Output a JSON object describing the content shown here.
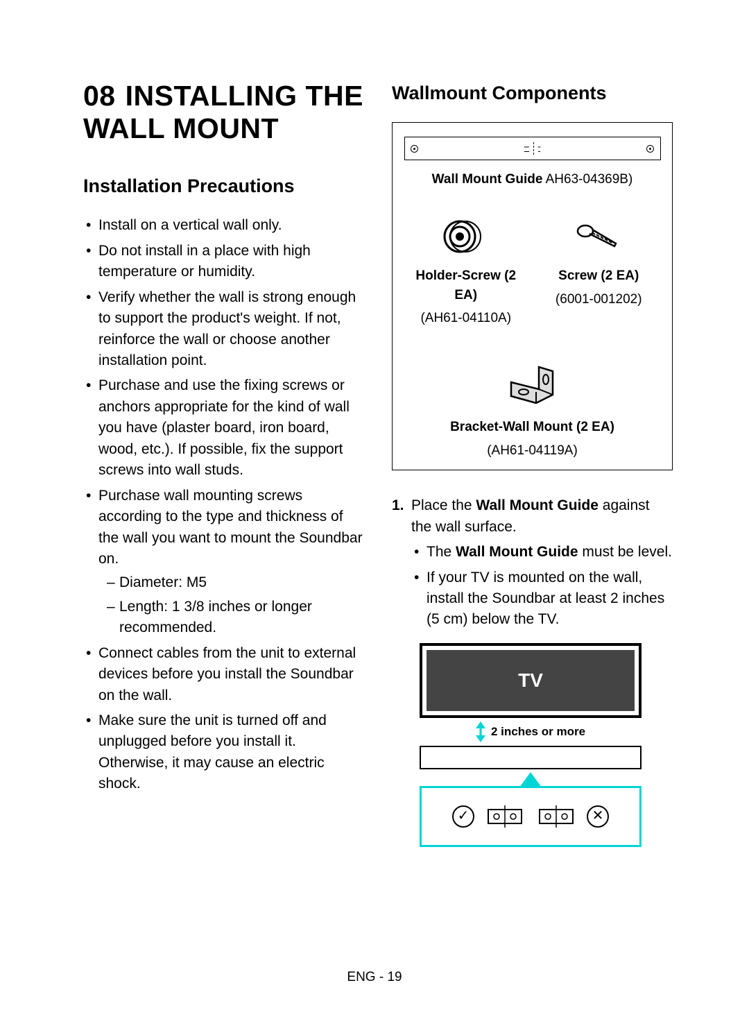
{
  "left": {
    "section_number": "08",
    "section_title": "INSTALLING THE WALL MOUNT",
    "precautions_heading": "Installation Precautions",
    "precautions": [
      "Install on a vertical wall only.",
      "Do not install in a place with high temperature or humidity.",
      "Verify whether the wall is strong enough to support the product's weight. If not, reinforce the wall or choose another installation point.",
      "Purchase and use the fixing screws or anchors appropriate for the kind of wall you have (plaster board, iron board, wood, etc.). If possible, fix the support screws into wall studs.",
      "Purchase wall mounting screws according to the type and thickness of the wall you want to mount the Soundbar on.",
      "Connect cables from the unit to external devices before you install the Soundbar on the wall.",
      "Make sure the unit is turned off and unplugged before you install it. Otherwise, it may cause an electric shock."
    ],
    "precautions_sub_index": 4,
    "precautions_sub": [
      "Diameter: M5",
      "Length: 1 3/8 inches or longer recommended."
    ]
  },
  "right": {
    "components_heading": "Wallmount Components",
    "guide_label_bold": "Wall Mount Guide",
    "guide_label_rest": " AH63-04369B)",
    "guide_label_full": "Wall Mount Guide AH63-04369B)",
    "holder_label": "Holder-Screw (2 EA)",
    "holder_part": "(AH61-04110A)",
    "screw_label": "Screw (2 EA)",
    "screw_part": "(6001-001202)",
    "bracket_label": "Bracket-Wall Mount (2 EA)",
    "bracket_part": "(AH61-04119A)",
    "step1_num": "1.",
    "step1_pre": "Place the ",
    "step1_bold": "Wall Mount Guide",
    "step1_post": " against the wall surface.",
    "step1_b1_pre": "The ",
    "step1_b1_bold": "Wall Mount Guide",
    "step1_b1_post": " must be level.",
    "step1_b2": "If your TV is mounted on the wall, install the Soundbar at least 2 inches (5 cm) below the TV.",
    "tv_label": "TV",
    "gap_label": "2 inches or more"
  },
  "footer": "ENG - 19",
  "colors": {
    "accent": "#00d5d5",
    "tv_fill": "#444444",
    "text": "#000000",
    "bg": "#ffffff"
  }
}
